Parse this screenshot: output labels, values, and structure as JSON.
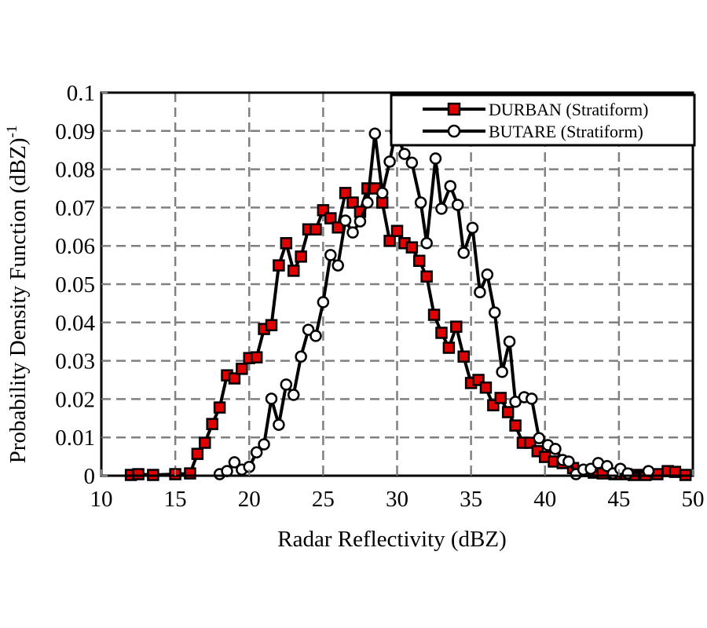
{
  "chart_data": {
    "type": "line",
    "title": "",
    "xlabel": "Radar Reflectivity (dBZ)",
    "ylabel": "Probability Density Function (dBZ)",
    "ylabel_superscript": "-1",
    "xlim": [
      10,
      50
    ],
    "ylim": [
      0,
      0.1
    ],
    "xticks": [
      10,
      15,
      20,
      25,
      30,
      35,
      40,
      45,
      50
    ],
    "xtick_labels": [
      "10",
      "15",
      "20",
      "25",
      "30",
      "35",
      "40",
      "45",
      "50"
    ],
    "yticks": [
      0,
      0.01,
      0.02,
      0.03,
      0.04,
      0.05,
      0.06,
      0.07,
      0.08,
      0.09,
      0.1
    ],
    "ytick_labels": [
      "0",
      "0.01",
      "0.02",
      "0.03",
      "0.04",
      "0.05",
      "0.06",
      "0.07",
      "0.08",
      "0.09",
      "0.1"
    ],
    "grid": true,
    "legend_position": "top-right",
    "series": [
      {
        "name": "DURBAN (Stratiform)",
        "marker": "square",
        "marker_color": "#e00000",
        "line_color": "#000000",
        "x": [
          12.0,
          12.5,
          13.5,
          15.0,
          16.0,
          16.5,
          17.0,
          17.5,
          18.0,
          18.5,
          19.0,
          19.5,
          20.0,
          20.5,
          21.0,
          21.5,
          22.0,
          22.5,
          23.0,
          23.5,
          24.0,
          24.5,
          25.0,
          25.5,
          26.0,
          26.5,
          27.0,
          27.5,
          28.0,
          28.5,
          29.0,
          29.5,
          30.0,
          30.5,
          31.0,
          31.5,
          32.0,
          32.5,
          33.0,
          33.5,
          34.0,
          34.5,
          35.0,
          35.5,
          36.0,
          36.5,
          37.0,
          37.5,
          38.0,
          38.5,
          39.0,
          39.5,
          40.0,
          40.6,
          41.2,
          41.9,
          42.6,
          43.3,
          43.9,
          44.7,
          45.5,
          46.0,
          46.8,
          47.6,
          48.3,
          48.8,
          49.5
        ],
        "y": [
          0.0002,
          0.0004,
          0.0002,
          0.0004,
          0.0006,
          0.0057,
          0.0086,
          0.0135,
          0.0178,
          0.0262,
          0.0254,
          0.0279,
          0.0307,
          0.0309,
          0.0383,
          0.0393,
          0.0549,
          0.0607,
          0.0535,
          0.0572,
          0.0643,
          0.0643,
          0.0693,
          0.0672,
          0.0648,
          0.0738,
          0.0713,
          0.0689,
          0.075,
          0.075,
          0.0713,
          0.0613,
          0.0639,
          0.0607,
          0.0596,
          0.0561,
          0.052,
          0.042,
          0.0373,
          0.0334,
          0.0389,
          0.0311,
          0.0242,
          0.025,
          0.023,
          0.0184,
          0.0203,
          0.0166,
          0.0131,
          0.0086,
          0.0086,
          0.0064,
          0.0049,
          0.0037,
          0.0033,
          0.002,
          0.0012,
          0.0008,
          0.0006,
          0.0004,
          0.0004,
          0.0002,
          0.0002,
          0.0004,
          0.0012,
          0.001,
          0.0002
        ]
      },
      {
        "name": "BUTARE (Stratiform)",
        "marker": "circle",
        "marker_color": "#ffffff",
        "line_color": "#000000",
        "x": [
          18.0,
          18.5,
          19.0,
          19.5,
          20.0,
          20.5,
          21.0,
          21.5,
          22.0,
          22.5,
          23.0,
          23.5,
          24.0,
          24.5,
          25.0,
          25.5,
          26.0,
          26.5,
          27.0,
          27.5,
          28.0,
          28.5,
          29.0,
          29.5,
          29.9,
          30.5,
          31.0,
          31.6,
          32.0,
          32.6,
          33.0,
          33.6,
          34.1,
          34.5,
          35.1,
          35.6,
          36.1,
          36.6,
          37.1,
          37.6,
          38.0,
          38.6,
          39.1,
          39.6,
          40.2,
          40.7,
          41.2,
          41.6,
          42.1,
          42.6,
          43.1,
          43.6,
          44.2,
          44.6,
          45.1,
          45.6,
          47.0
        ],
        "y": [
          0.0004,
          0.0012,
          0.0035,
          0.0016,
          0.0023,
          0.0061,
          0.0082,
          0.0201,
          0.0133,
          0.0238,
          0.0211,
          0.0311,
          0.0381,
          0.0365,
          0.0453,
          0.0576,
          0.0549,
          0.0666,
          0.0635,
          0.0664,
          0.0713,
          0.0893,
          0.0738,
          0.082,
          0.0898,
          0.084,
          0.0817,
          0.0713,
          0.0607,
          0.0828,
          0.0697,
          0.0756,
          0.0707,
          0.0582,
          0.0647,
          0.0479,
          0.0525,
          0.0426,
          0.0271,
          0.035,
          0.0193,
          0.0205,
          0.0201,
          0.0098,
          0.008,
          0.007,
          0.0041,
          0.0037,
          0.0004,
          0.0016,
          0.0018,
          0.0033,
          0.0025,
          0.0006,
          0.0018,
          0.0006,
          0.0012
        ]
      }
    ]
  }
}
